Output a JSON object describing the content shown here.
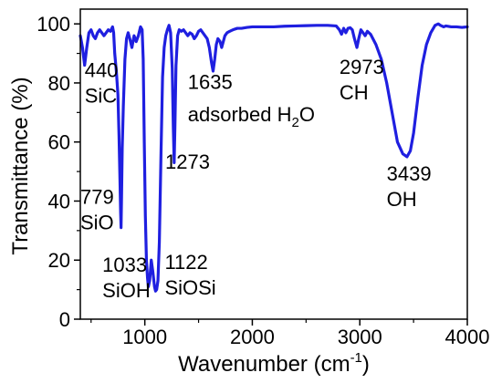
{
  "chart_data": {
    "type": "line",
    "xlabel": {
      "main": "Wavenumber (cm",
      "sup": "-1",
      "end": ")"
    },
    "ylabel": "Transmittance (%)",
    "xlim": [
      400,
      4000
    ],
    "ylim": [
      0,
      105
    ],
    "x_ticks": [
      1000,
      2000,
      3000,
      4000
    ],
    "y_ticks": [
      0,
      20,
      40,
      60,
      80,
      100
    ],
    "grid": false,
    "line_color": "#1f1fe0",
    "series": [
      {
        "points": [
          [
            400,
            96
          ],
          [
            420,
            92
          ],
          [
            440,
            86
          ],
          [
            460,
            92
          ],
          [
            480,
            97
          ],
          [
            500,
            98
          ],
          [
            520,
            96
          ],
          [
            540,
            95
          ],
          [
            560,
            97
          ],
          [
            580,
            98
          ],
          [
            600,
            97
          ],
          [
            620,
            96
          ],
          [
            640,
            97
          ],
          [
            660,
            98
          ],
          [
            680,
            97.5
          ],
          [
            700,
            99
          ],
          [
            710,
            97
          ],
          [
            720,
            90
          ],
          [
            735,
            84
          ],
          [
            750,
            76
          ],
          [
            760,
            62
          ],
          [
            770,
            45
          ],
          [
            775,
            36
          ],
          [
            779,
            31
          ],
          [
            783,
            40
          ],
          [
            790,
            58
          ],
          [
            800,
            72
          ],
          [
            815,
            88
          ],
          [
            830,
            95
          ],
          [
            845,
            97
          ],
          [
            860,
            95
          ],
          [
            880,
            92
          ],
          [
            900,
            96
          ],
          [
            920,
            94
          ],
          [
            940,
            96
          ],
          [
            960,
            99
          ],
          [
            975,
            98
          ],
          [
            985,
            88
          ],
          [
            995,
            60
          ],
          [
            1005,
            35
          ],
          [
            1015,
            20
          ],
          [
            1025,
            14
          ],
          [
            1033,
            11
          ],
          [
            1045,
            13
          ],
          [
            1060,
            20
          ],
          [
            1075,
            16
          ],
          [
            1090,
            11
          ],
          [
            1100,
            9.5
          ],
          [
            1110,
            10
          ],
          [
            1122,
            13
          ],
          [
            1135,
            26
          ],
          [
            1150,
            55
          ],
          [
            1165,
            82
          ],
          [
            1180,
            92
          ],
          [
            1195,
            96
          ],
          [
            1210,
            98
          ],
          [
            1225,
            99.5
          ],
          [
            1240,
            97
          ],
          [
            1255,
            85
          ],
          [
            1265,
            65
          ],
          [
            1273,
            53
          ],
          [
            1280,
            65
          ],
          [
            1290,
            86
          ],
          [
            1305,
            96
          ],
          [
            1320,
            98
          ],
          [
            1340,
            97.5
          ],
          [
            1360,
            98
          ],
          [
            1380,
            97
          ],
          [
            1400,
            96
          ],
          [
            1420,
            97
          ],
          [
            1440,
            96.5
          ],
          [
            1460,
            95
          ],
          [
            1480,
            96
          ],
          [
            1500,
            97.5
          ],
          [
            1520,
            98
          ],
          [
            1540,
            97
          ],
          [
            1560,
            96
          ],
          [
            1580,
            95
          ],
          [
            1600,
            92
          ],
          [
            1620,
            87
          ],
          [
            1635,
            84
          ],
          [
            1650,
            88
          ],
          [
            1665,
            93
          ],
          [
            1680,
            95
          ],
          [
            1700,
            94
          ],
          [
            1715,
            92
          ],
          [
            1730,
            94
          ],
          [
            1745,
            96
          ],
          [
            1765,
            97
          ],
          [
            1790,
            97.5
          ],
          [
            1820,
            98
          ],
          [
            1860,
            98.5
          ],
          [
            1900,
            98.5
          ],
          [
            1950,
            98.8
          ],
          [
            2000,
            99
          ],
          [
            2100,
            99
          ],
          [
            2200,
            99
          ],
          [
            2300,
            99.2
          ],
          [
            2400,
            99.3
          ],
          [
            2500,
            99.4
          ],
          [
            2600,
            99.5
          ],
          [
            2700,
            99.5
          ],
          [
            2780,
            99.3
          ],
          [
            2810,
            98
          ],
          [
            2830,
            96.5
          ],
          [
            2850,
            98.5
          ],
          [
            2870,
            97
          ],
          [
            2890,
            98.5
          ],
          [
            2910,
            98.7
          ],
          [
            2930,
            98
          ],
          [
            2950,
            95
          ],
          [
            2973,
            92
          ],
          [
            2990,
            95
          ],
          [
            3010,
            98
          ],
          [
            3030,
            97
          ],
          [
            3050,
            96
          ],
          [
            3070,
            97.5
          ],
          [
            3100,
            96.5
          ],
          [
            3150,
            93
          ],
          [
            3200,
            88
          ],
          [
            3250,
            80
          ],
          [
            3300,
            70
          ],
          [
            3350,
            60
          ],
          [
            3400,
            56
          ],
          [
            3439,
            55
          ],
          [
            3470,
            57
          ],
          [
            3500,
            63
          ],
          [
            3540,
            75
          ],
          [
            3580,
            86
          ],
          [
            3620,
            93
          ],
          [
            3660,
            97
          ],
          [
            3700,
            99.5
          ],
          [
            3730,
            100
          ],
          [
            3750,
            99.5
          ],
          [
            3780,
            99
          ],
          [
            3800,
            99.3
          ],
          [
            3850,
            99
          ],
          [
            3900,
            99
          ],
          [
            3950,
            98.8
          ],
          [
            4000,
            99
          ]
        ]
      }
    ],
    "annotations": [
      {
        "id": "440",
        "lines": [
          "440",
          "SiC"
        ],
        "x": 440,
        "y": 82
      },
      {
        "id": "779",
        "lines": [
          "779",
          "SiO"
        ],
        "x": 400,
        "y": 39
      },
      {
        "id": "1033",
        "lines": [
          "1033",
          "SiOH"
        ],
        "x": 605,
        "y": 16
      },
      {
        "id": "1122",
        "lines": [
          "1122",
          "SiOSi"
        ],
        "x": 1185,
        "y": 17
      },
      {
        "id": "1273",
        "lines": [
          "1273"
        ],
        "x": 1190,
        "y": 51
      },
      {
        "id": "1635",
        "lines": [
          "1635"
        ],
        "x": 1400,
        "y": 78
      },
      {
        "id": "h2o",
        "lines": [],
        "x": 1400,
        "y": 67
      },
      {
        "id": "2973",
        "lines": [
          "2973",
          "CH"
        ],
        "x": 2810,
        "y": 83
      },
      {
        "id": "3439",
        "lines": [
          "3439",
          "OH"
        ],
        "x": 3250,
        "y": 47
      }
    ],
    "h2o_label": {
      "pre": "adsorbed H",
      "sub": "2",
      "post": "O"
    }
  }
}
